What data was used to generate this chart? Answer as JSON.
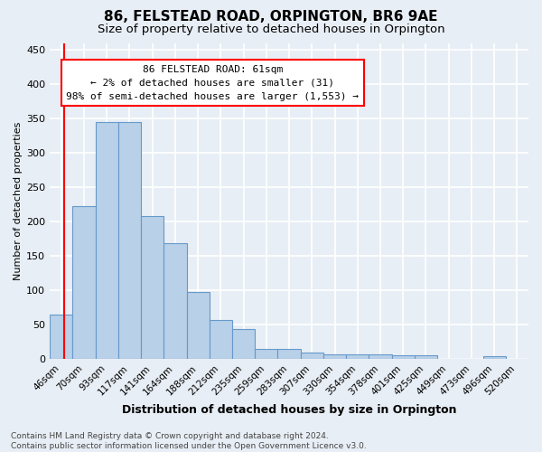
{
  "title1": "86, FELSTEAD ROAD, ORPINGTON, BR6 9AE",
  "title2": "Size of property relative to detached houses in Orpington",
  "xlabel": "Distribution of detached houses by size in Orpington",
  "ylabel": "Number of detached properties",
  "bar_labels": [
    "46sqm",
    "70sqm",
    "93sqm",
    "117sqm",
    "141sqm",
    "164sqm",
    "188sqm",
    "212sqm",
    "235sqm",
    "259sqm",
    "283sqm",
    "307sqm",
    "330sqm",
    "354sqm",
    "378sqm",
    "401sqm",
    "425sqm",
    "449sqm",
    "473sqm",
    "496sqm",
    "520sqm"
  ],
  "bar_values": [
    65,
    222,
    345,
    345,
    208,
    168,
    98,
    56,
    43,
    15,
    14,
    9,
    7,
    7,
    6,
    5,
    5,
    0,
    0,
    4,
    0
  ],
  "bar_color": "#b8d0e8",
  "bar_edge_color": "#6699cc",
  "background_color": "#e8eef5",
  "grid_color": "#ffffff",
  "annotation_text": "86 FELSTEAD ROAD: 61sqm\n← 2% of detached houses are smaller (31)\n98% of semi-detached houses are larger (1,553) →",
  "ylim": [
    0,
    460
  ],
  "yticks": [
    0,
    50,
    100,
    150,
    200,
    250,
    300,
    350,
    400,
    450
  ],
  "footnote": "Contains HM Land Registry data © Crown copyright and database right 2024.\nContains public sector information licensed under the Open Government Licence v3.0.",
  "title1_fontsize": 11,
  "title2_fontsize": 9.5,
  "xlabel_fontsize": 9,
  "ylabel_fontsize": 8,
  "tick_fontsize": 7.5,
  "annot_fontsize": 8,
  "footnote_fontsize": 6.5
}
